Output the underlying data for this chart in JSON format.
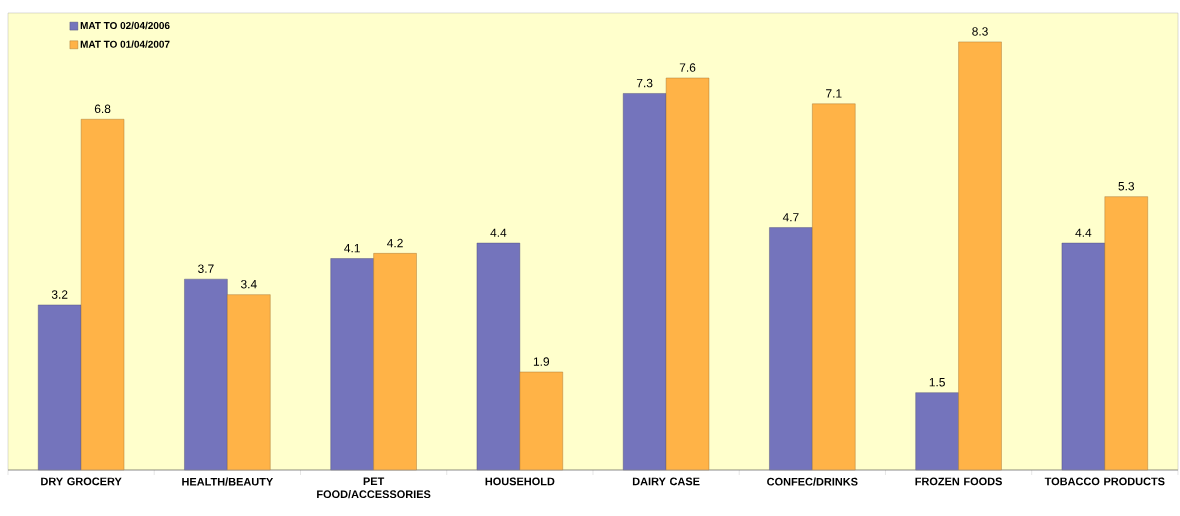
{
  "chart_data": {
    "type": "bar",
    "categories": [
      "DRY GROCERY",
      "HEALTH/BEAUTY",
      "PET FOOD/ACCESSORIES",
      "HOUSEHOLD",
      "DAIRY CASE",
      "CONFEC/DRINKS",
      "FROZEN FOODS",
      "TOBACCO PRODUCTS"
    ],
    "series": [
      {
        "name": "MAT TO 02/04/2006",
        "color": "#7474bc",
        "values": [
          3.2,
          3.7,
          4.1,
          4.4,
          7.3,
          4.7,
          1.5,
          4.4
        ]
      },
      {
        "name": "MAT TO 01/04/2007",
        "color": "#ffb347",
        "values": [
          6.8,
          3.4,
          4.2,
          1.9,
          7.6,
          7.1,
          8.3,
          5.3
        ]
      }
    ],
    "ylim": [
      0,
      8.86
    ],
    "data_labels": true,
    "legend": "top left"
  }
}
